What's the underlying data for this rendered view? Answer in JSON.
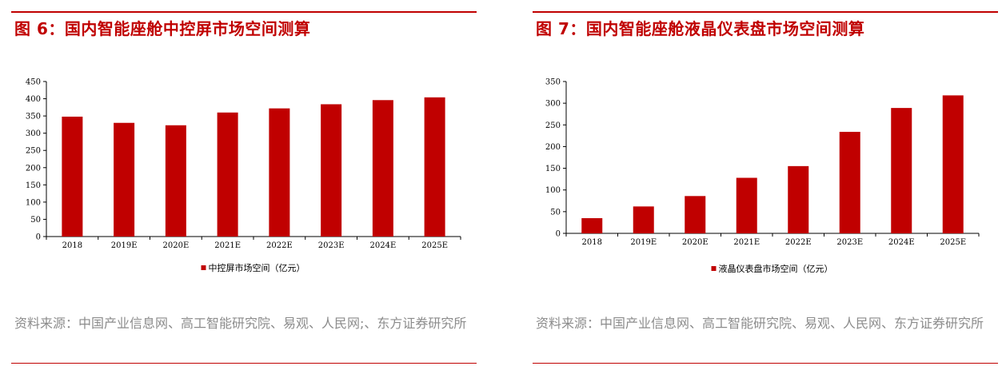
{
  "colors": {
    "accent": "#c00000",
    "bar": "#c00000",
    "source_text": "#8c8c8c"
  },
  "panels": [
    {
      "title": "图 6：国内智能座舱中控屏市场空间测算",
      "source": "资料来源：中国产业信息网、高工智能研究院、易观、人民网;、东方证券研究所",
      "chart_data": {
        "type": "bar",
        "categories": [
          "2018",
          "2019E",
          "2020E",
          "2021E",
          "2022E",
          "2023E",
          "2024E",
          "2025E"
        ],
        "series": [
          {
            "name": "中控屏市场空间（亿元）",
            "values": [
              348,
              330,
              323,
              360,
              372,
              384,
              396,
              404
            ]
          }
        ],
        "ylim": [
          0,
          450
        ],
        "yticks": [
          0,
          50,
          100,
          150,
          200,
          250,
          300,
          350,
          400,
          450
        ],
        "legend_position": "bottom",
        "grid": false
      }
    },
    {
      "title": "图 7：国内智能座舱液晶仪表盘市场空间测算",
      "source": "资料来源：中国产业信息网、高工智能研究院、易观、人民网、东方证券研究所",
      "chart_data": {
        "type": "bar",
        "categories": [
          "2018",
          "2019E",
          "2020E",
          "2021E",
          "2022E",
          "2023E",
          "2024E",
          "2025E"
        ],
        "series": [
          {
            "name": "液晶仪表盘市场空间（亿元）",
            "values": [
              35,
              62,
              86,
              128,
              155,
              234,
              289,
              318
            ]
          }
        ],
        "ylim": [
          0,
          350
        ],
        "yticks": [
          0,
          50,
          100,
          150,
          200,
          250,
          300,
          350
        ],
        "legend_position": "bottom",
        "grid": false
      }
    }
  ]
}
